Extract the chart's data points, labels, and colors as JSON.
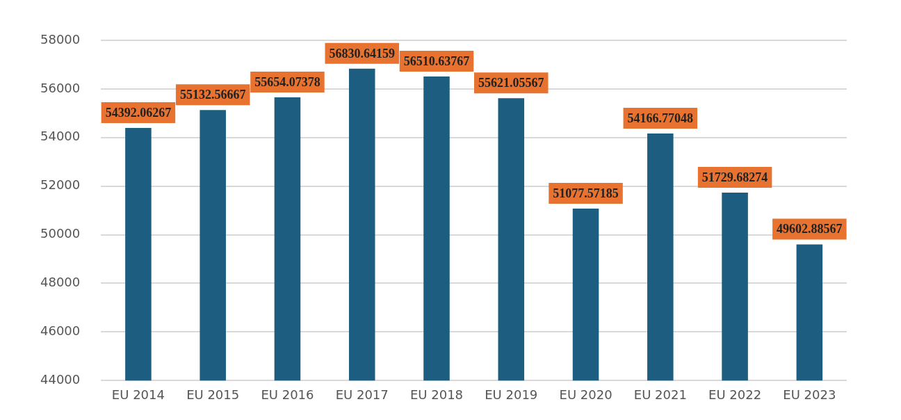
{
  "chart_data": {
    "type": "bar",
    "categories": [
      "EU 2014",
      "EU 2015",
      "EU 2016",
      "EU 2017",
      "EU 2018",
      "EU 2019",
      "EU 2020",
      "EU 2021",
      "EU 2022",
      "EU 2023"
    ],
    "values": [
      54392.06267,
      55132.56667,
      55654.07378,
      56830.64159,
      56510.63767,
      55621.05567,
      51077.57185,
      54166.77048,
      51729.68274,
      49602.88567
    ],
    "color": "#1d5e80",
    "ylim": [
      44000,
      58000
    ],
    "yticks": [
      44000,
      46000,
      48000,
      50000,
      52000,
      54000,
      56000,
      58000
    ],
    "grid": "y",
    "data_labels": true,
    "legend": false
  }
}
